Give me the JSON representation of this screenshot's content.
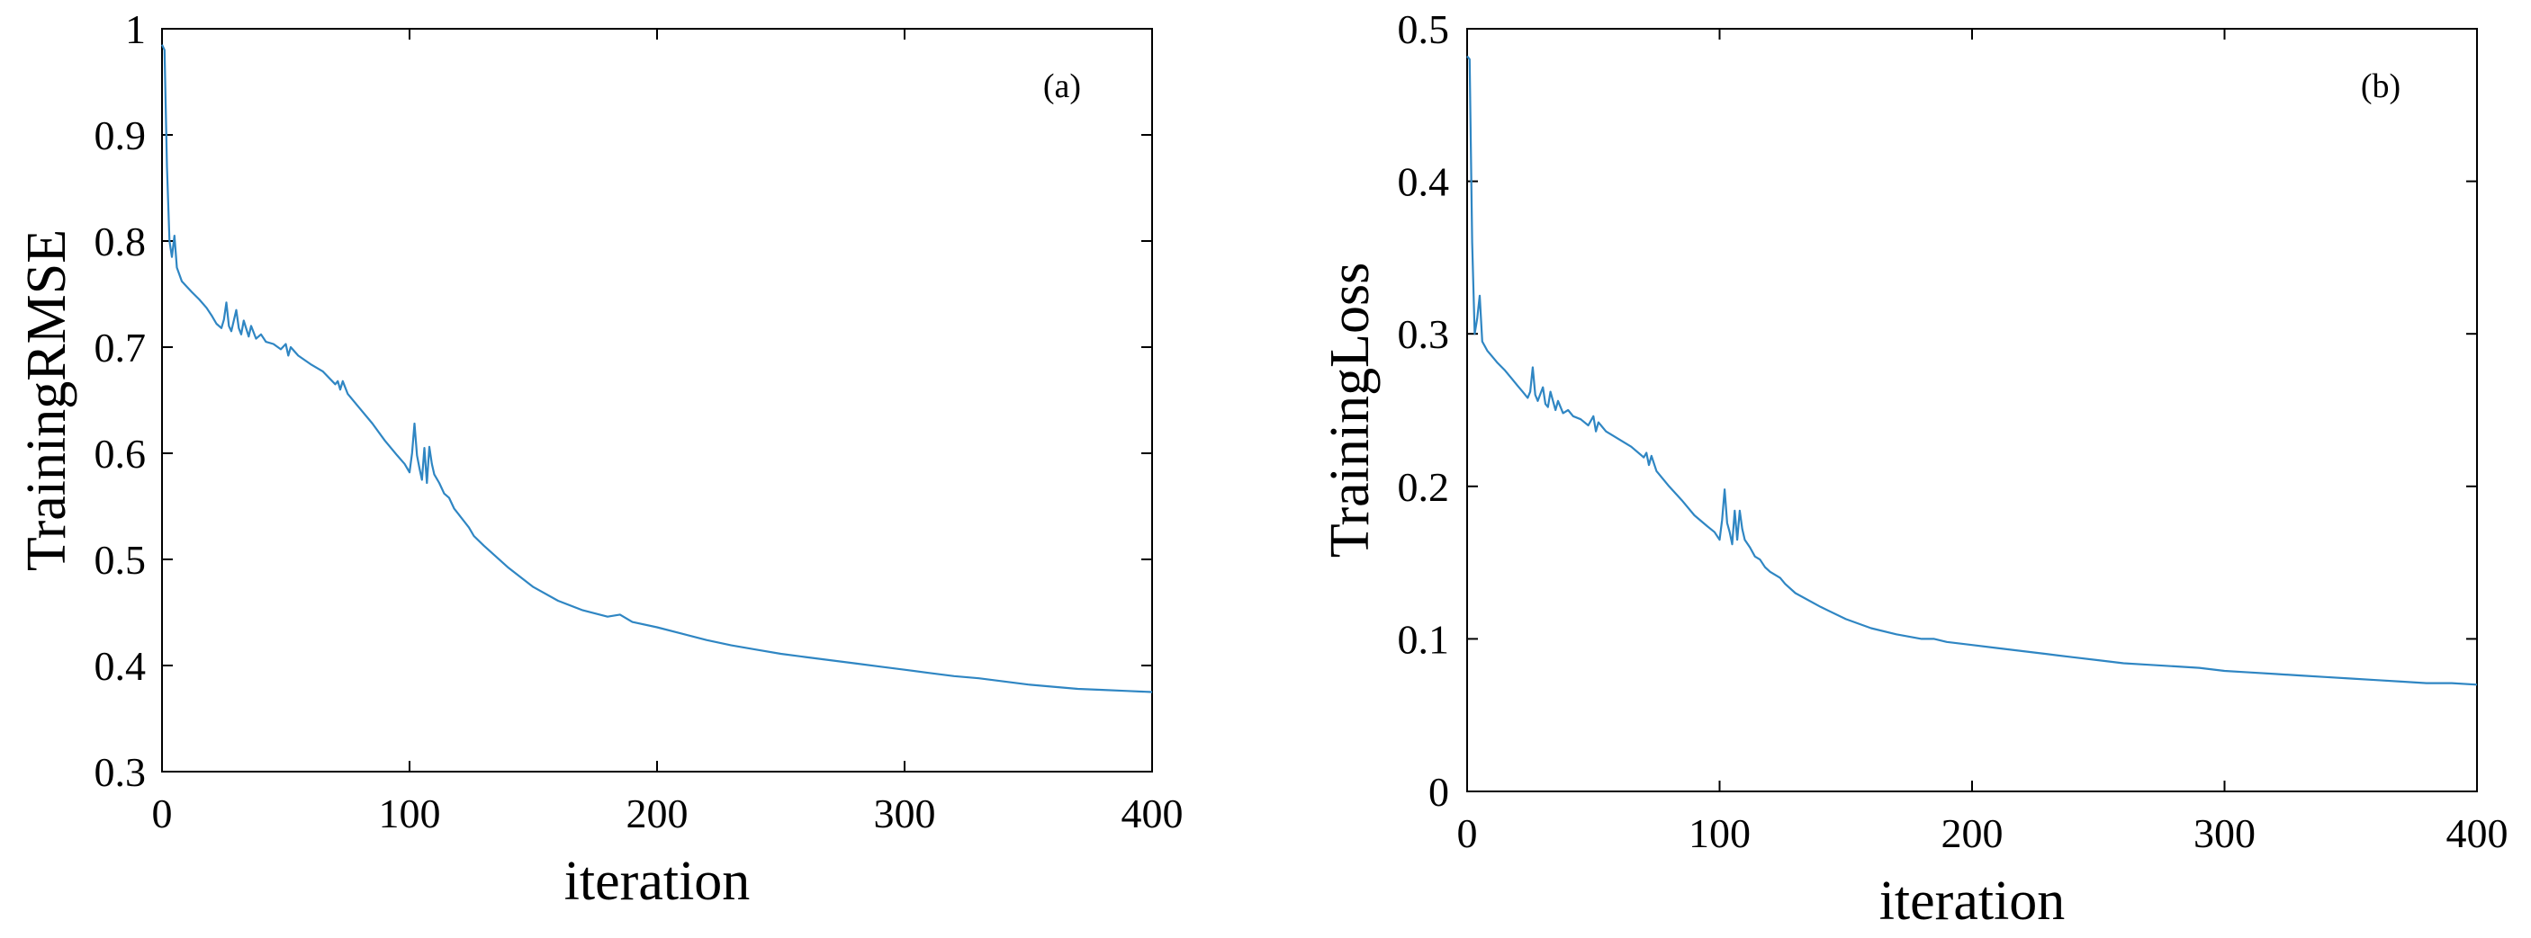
{
  "chart_data": [
    {
      "type": "line",
      "panel_label": "(a)",
      "xlabel": "iteration",
      "ylabel": "TrainingRMSE",
      "xlim": [
        0,
        400
      ],
      "ylim": [
        0.3,
        1
      ],
      "xticks": [
        0,
        100,
        200,
        300,
        400
      ],
      "yticks": [
        0.3,
        0.4,
        0.5,
        0.6,
        0.7,
        0.8,
        0.9,
        1
      ],
      "ytick_labels": [
        "0.3",
        "0.4",
        "0.5",
        "0.6",
        "0.7",
        "0.8",
        "0.9",
        "1"
      ],
      "grid": false,
      "color": "#2f86c3",
      "series": [
        {
          "x": [
            0,
            1,
            2,
            3,
            4,
            5,
            6,
            8,
            10,
            12,
            15,
            18,
            20,
            22,
            24,
            25,
            26,
            27,
            28,
            30,
            31,
            32,
            33,
            35,
            36,
            38,
            40,
            42,
            45,
            48,
            50,
            51,
            52,
            55,
            60,
            65,
            70,
            71,
            72,
            73,
            75,
            80,
            85,
            90,
            95,
            98,
            100,
            101,
            102,
            103,
            104,
            105,
            106,
            107,
            108,
            109,
            110,
            112,
            114,
            116,
            118,
            120,
            122,
            124,
            126,
            130,
            140,
            150,
            160,
            170,
            180,
            185,
            190,
            200,
            210,
            220,
            230,
            240,
            250,
            260,
            270,
            280,
            290,
            300,
            310,
            320,
            330,
            340,
            350,
            360,
            370,
            380,
            390,
            400
          ],
          "y": [
            0.985,
            0.98,
            0.87,
            0.8,
            0.785,
            0.805,
            0.775,
            0.762,
            0.757,
            0.752,
            0.745,
            0.737,
            0.73,
            0.722,
            0.718,
            0.726,
            0.742,
            0.72,
            0.715,
            0.735,
            0.718,
            0.712,
            0.725,
            0.71,
            0.72,
            0.708,
            0.712,
            0.705,
            0.703,
            0.698,
            0.703,
            0.692,
            0.7,
            0.692,
            0.684,
            0.677,
            0.665,
            0.668,
            0.66,
            0.668,
            0.656,
            0.642,
            0.628,
            0.612,
            0.598,
            0.59,
            0.582,
            0.6,
            0.628,
            0.598,
            0.586,
            0.575,
            0.605,
            0.572,
            0.606,
            0.59,
            0.58,
            0.572,
            0.562,
            0.558,
            0.548,
            0.542,
            0.536,
            0.53,
            0.522,
            0.513,
            0.492,
            0.474,
            0.461,
            0.452,
            0.446,
            0.448,
            0.441,
            0.436,
            0.43,
            0.424,
            0.419,
            0.415,
            0.411,
            0.408,
            0.405,
            0.402,
            0.399,
            0.396,
            0.393,
            0.39,
            0.388,
            0.385,
            0.382,
            0.38,
            0.378,
            0.377,
            0.376,
            0.375
          ]
        }
      ]
    },
    {
      "type": "line",
      "panel_label": "(b)",
      "xlabel": "iteration",
      "ylabel": "TrainingLoss",
      "xlim": [
        0,
        400
      ],
      "ylim": [
        0,
        0.5
      ],
      "xticks": [
        0,
        100,
        200,
        300,
        400
      ],
      "yticks": [
        0,
        0.1,
        0.2,
        0.3,
        0.4,
        0.5
      ],
      "ytick_labels": [
        "0",
        "0.1",
        "0.2",
        "0.3",
        "0.4",
        "0.5"
      ],
      "grid": false,
      "color": "#2f86c3",
      "series": [
        {
          "x": [
            0,
            1,
            2,
            3,
            4,
            5,
            6,
            8,
            10,
            12,
            15,
            18,
            20,
            22,
            24,
            25,
            26,
            27,
            28,
            30,
            31,
            32,
            33,
            35,
            36,
            38,
            40,
            42,
            45,
            48,
            50,
            51,
            52,
            55,
            60,
            65,
            70,
            71,
            72,
            73,
            75,
            80,
            85,
            90,
            95,
            98,
            100,
            101,
            102,
            103,
            104,
            105,
            106,
            107,
            108,
            109,
            110,
            112,
            114,
            116,
            118,
            120,
            122,
            124,
            126,
            130,
            140,
            150,
            160,
            170,
            180,
            185,
            190,
            200,
            210,
            220,
            230,
            240,
            250,
            260,
            270,
            280,
            290,
            300,
            310,
            320,
            330,
            340,
            350,
            360,
            370,
            380,
            390,
            400
          ],
          "y": [
            0.482,
            0.48,
            0.36,
            0.3,
            0.31,
            0.325,
            0.295,
            0.289,
            0.285,
            0.281,
            0.276,
            0.27,
            0.266,
            0.262,
            0.258,
            0.262,
            0.278,
            0.26,
            0.256,
            0.265,
            0.254,
            0.252,
            0.262,
            0.25,
            0.256,
            0.248,
            0.25,
            0.246,
            0.244,
            0.24,
            0.246,
            0.236,
            0.242,
            0.236,
            0.231,
            0.226,
            0.219,
            0.222,
            0.214,
            0.22,
            0.21,
            0.2,
            0.191,
            0.181,
            0.174,
            0.17,
            0.165,
            0.178,
            0.198,
            0.176,
            0.17,
            0.162,
            0.184,
            0.165,
            0.184,
            0.172,
            0.165,
            0.16,
            0.154,
            0.152,
            0.147,
            0.144,
            0.142,
            0.14,
            0.136,
            0.13,
            0.121,
            0.113,
            0.107,
            0.103,
            0.1,
            0.1,
            0.098,
            0.096,
            0.094,
            0.092,
            0.09,
            0.088,
            0.086,
            0.084,
            0.083,
            0.082,
            0.081,
            0.079,
            0.078,
            0.077,
            0.076,
            0.075,
            0.074,
            0.073,
            0.072,
            0.071,
            0.071,
            0.07
          ]
        }
      ]
    }
  ]
}
